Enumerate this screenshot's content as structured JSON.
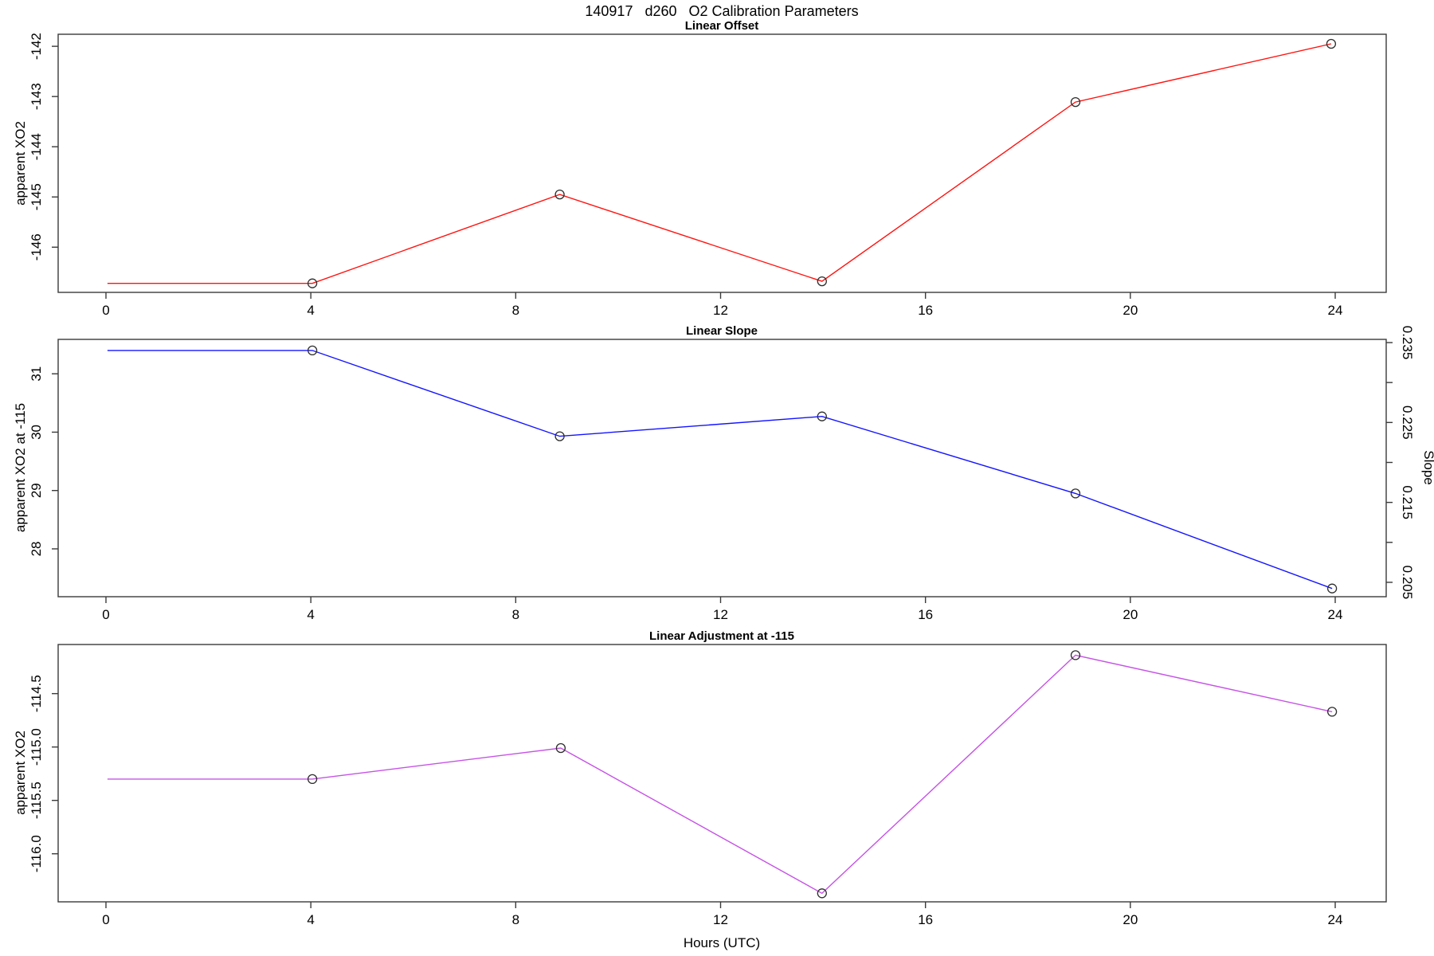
{
  "page": {
    "title": "140917   d260   O2 Calibration Parameters"
  },
  "axis": {
    "x_label": "Hours (UTC)",
    "x_ticks": [
      0,
      4,
      8,
      12,
      16,
      20,
      24
    ],
    "xlim": [
      -0.93,
      25.0
    ]
  },
  "chart_data": [
    {
      "type": "line",
      "series_name": "linear-offset",
      "title": "Linear Offset",
      "ylabel": "apparent XO2",
      "line_color": "#ff1410",
      "marker_color": "#2e2e2e",
      "ylim": [
        -146.9,
        -141.76
      ],
      "y_ticks": [
        {
          "value": -146,
          "label": "-146"
        },
        {
          "value": -145,
          "label": "-145"
        },
        {
          "value": -144,
          "label": "-144"
        },
        {
          "value": -143,
          "label": "-143"
        },
        {
          "value": -142,
          "label": "-142"
        }
      ],
      "points": [
        {
          "h": 0.03,
          "v": -146.72,
          "marker": false
        },
        {
          "h": 4.03,
          "v": -146.72,
          "marker": true
        },
        {
          "h": 8.86,
          "v": -144.95,
          "marker": true
        },
        {
          "h": 13.98,
          "v": -146.68,
          "marker": true
        },
        {
          "h": 18.93,
          "v": -143.11,
          "marker": true
        },
        {
          "h": 23.92,
          "v": -141.95,
          "marker": true
        }
      ]
    },
    {
      "type": "line",
      "series_name": "linear-slope",
      "title": "Linear Slope",
      "ylabel": "apparent XO2 at -115",
      "y2label": "Slope",
      "line_color": "#1414ff",
      "marker_color": "#2e2e2e",
      "ylim": [
        27.18,
        31.59
      ],
      "y_ticks": [
        {
          "value": 28,
          "label": "28"
        },
        {
          "value": 29,
          "label": "29"
        },
        {
          "value": 30,
          "label": "30"
        },
        {
          "value": 31,
          "label": "31"
        }
      ],
      "y2lim": [
        0.2032,
        0.2354
      ],
      "y2_ticks": [
        {
          "value": 0.205,
          "label": "0.205"
        },
        {
          "value": 0.21,
          "label": ""
        },
        {
          "value": 0.215,
          "label": "0.215"
        },
        {
          "value": 0.22,
          "label": ""
        },
        {
          "value": 0.225,
          "label": "0.225"
        },
        {
          "value": 0.23,
          "label": ""
        },
        {
          "value": 0.235,
          "label": "0.235"
        }
      ],
      "slope_values": [
        0.234,
        0.234,
        0.223,
        0.226,
        0.216,
        0.204
      ],
      "points": [
        {
          "h": 0.03,
          "v": 31.4,
          "marker": false
        },
        {
          "h": 4.03,
          "v": 31.4,
          "marker": true
        },
        {
          "h": 8.86,
          "v": 29.93,
          "marker": true
        },
        {
          "h": 13.98,
          "v": 30.27,
          "marker": true
        },
        {
          "h": 18.93,
          "v": 28.95,
          "marker": true
        },
        {
          "h": 23.94,
          "v": 27.32,
          "marker": true
        }
      ]
    },
    {
      "type": "line",
      "series_name": "linear-adjustment",
      "title": "Linear Adjustment at -115",
      "ylabel": "apparent XO2",
      "xlabel": "Hours (UTC)",
      "line_color": "#c653e6",
      "marker_color": "#2e2e2e",
      "ylim": [
        -116.45,
        -114.04
      ],
      "y_ticks": [
        {
          "value": -116.0,
          "label": "-116.0"
        },
        {
          "value": -115.5,
          "label": "-115.5"
        },
        {
          "value": -115.0,
          "label": "-115.0"
        },
        {
          "value": -114.5,
          "label": "-114.5"
        }
      ],
      "points": [
        {
          "h": 0.03,
          "v": -115.3,
          "marker": false
        },
        {
          "h": 4.03,
          "v": -115.3,
          "marker": true
        },
        {
          "h": 8.88,
          "v": -115.01,
          "marker": true
        },
        {
          "h": 13.98,
          "v": -116.37,
          "marker": true
        },
        {
          "h": 18.93,
          "v": -114.14,
          "marker": true
        },
        {
          "h": 23.94,
          "v": -114.67,
          "marker": true
        }
      ]
    }
  ]
}
